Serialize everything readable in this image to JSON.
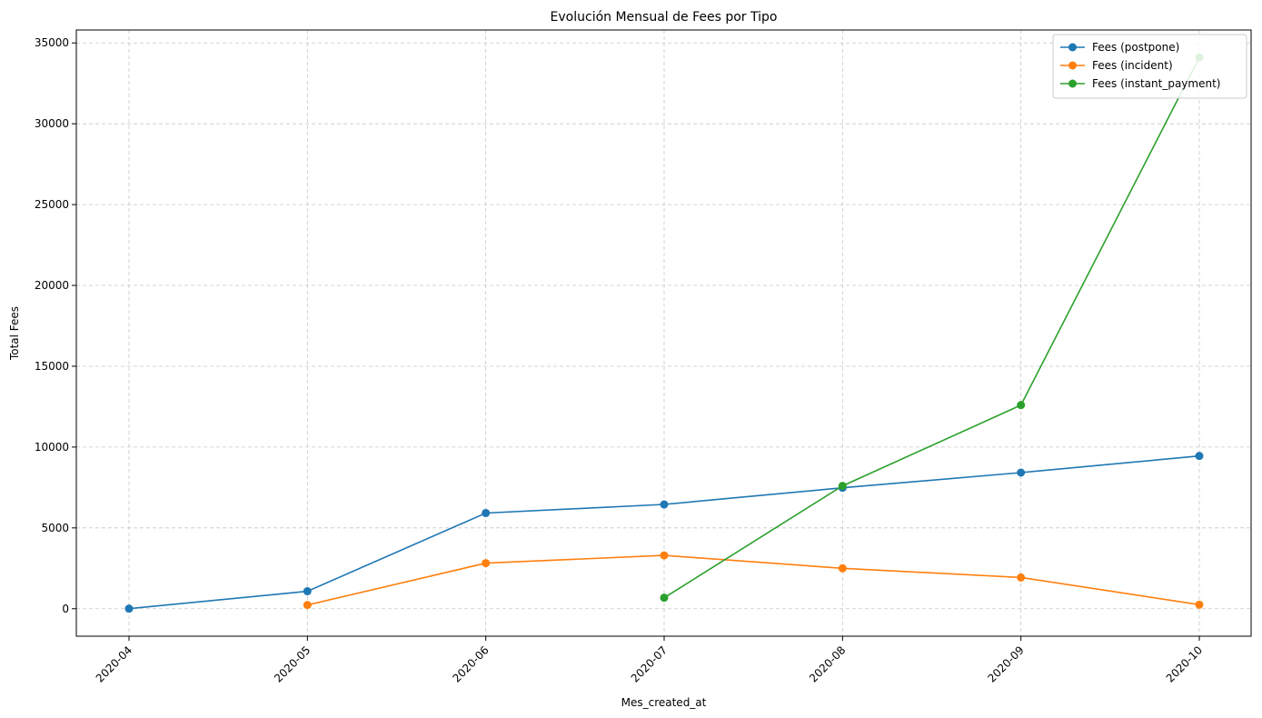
{
  "chart_data": {
    "type": "line",
    "title": "Evolución Mensual de Fees por Tipo",
    "xlabel": "Mes_created_at",
    "ylabel": "Total Fees",
    "x": [
      "2020-04",
      "2020-05",
      "2020-06",
      "2020-07",
      "2020-08",
      "2020-09",
      "2020-10"
    ],
    "xlim": [
      "2020-04",
      "2020-10"
    ],
    "ylim": [
      -1700,
      35800
    ],
    "yticks": [
      0,
      5000,
      10000,
      15000,
      20000,
      25000,
      30000,
      35000
    ],
    "grid": true,
    "legend_position": "top-right",
    "series": [
      {
        "name": "Fees (postpone)",
        "color": "#1f77b4",
        "values": [
          5,
          1080,
          5920,
          6450,
          7480,
          8420,
          9450
        ]
      },
      {
        "name": "Fees (incident)",
        "color": "#ff7f0e",
        "values": [
          null,
          230,
          2820,
          3300,
          2500,
          1930,
          250
        ]
      },
      {
        "name": "Fees (instant_payment)",
        "color": "#2ca02c",
        "values": [
          null,
          null,
          null,
          680,
          7600,
          12600,
          34100
        ]
      }
    ]
  }
}
